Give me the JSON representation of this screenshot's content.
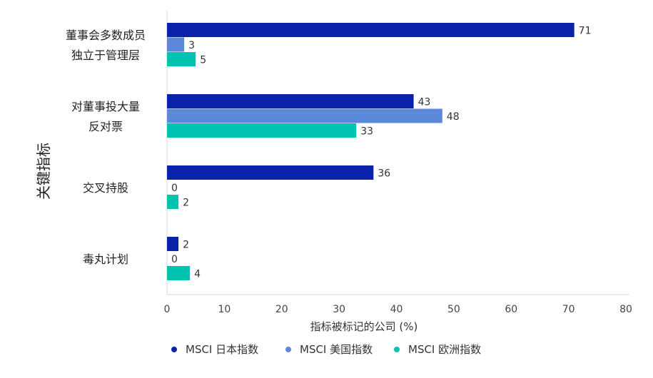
{
  "chart_data": {
    "type": "bar",
    "orientation": "horizontal",
    "title": "",
    "xlabel": "指标被标记的公司 (%)",
    "ylabel": "关键指标",
    "xlim": [
      0,
      80
    ],
    "xticks": [
      0,
      10,
      20,
      30,
      40,
      50,
      60,
      70,
      80
    ],
    "grid": false,
    "legend_position": "bottom",
    "categories": [
      [
        "董事会多数成员",
        "独立于管理层"
      ],
      [
        "对董事投大量",
        "反对票"
      ],
      [
        "交叉持股"
      ],
      [
        "毒丸计划"
      ]
    ],
    "series": [
      {
        "name": "MSCI 日本指数",
        "color": "#0a22a8",
        "values": [
          71,
          43,
          36,
          2
        ]
      },
      {
        "name": "MSCI 美国指数",
        "color": "#5b88d9",
        "values": [
          3,
          48,
          0,
          0
        ]
      },
      {
        "name": "MSCI 欧洲指数",
        "color": "#00c4b1",
        "values": [
          5,
          33,
          2,
          4
        ]
      }
    ]
  }
}
